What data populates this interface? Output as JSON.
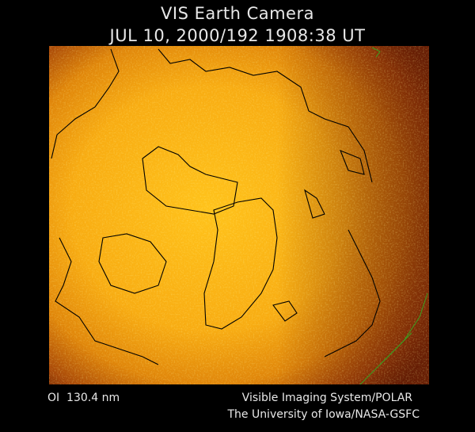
{
  "header": {
    "title": "VIS Earth Camera",
    "timestamp": "JUL 10, 2000/192 1908:38 UT"
  },
  "footer": {
    "filter": "OI  130.4 nm",
    "instrument": "Visible Imaging System/POLAR",
    "institution": "The University of Iowa/NASA-GSFC"
  }
}
